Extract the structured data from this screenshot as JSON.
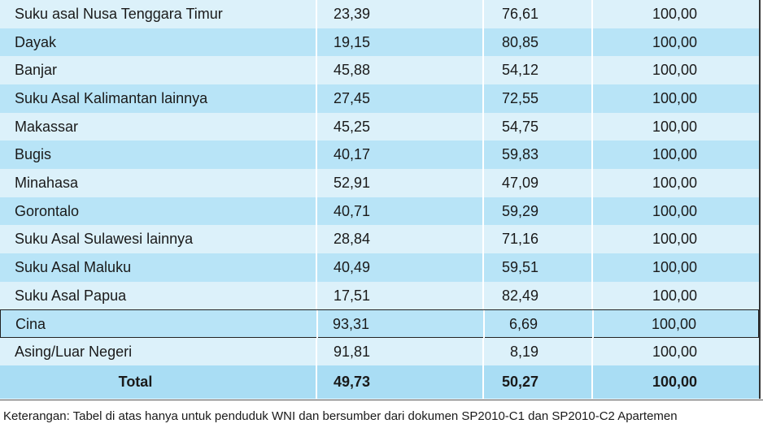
{
  "table": {
    "rows": [
      [
        "Suku asal Nusa Tenggara Timur",
        "23,39",
        "76,61",
        "100,00"
      ],
      [
        "Dayak",
        "19,15",
        "80,85",
        "100,00"
      ],
      [
        "Banjar",
        "45,88",
        "54,12",
        "100,00"
      ],
      [
        "Suku Asal Kalimantan lainnya",
        "27,45",
        "72,55",
        "100,00"
      ],
      [
        "Makassar",
        "45,25",
        "54,75",
        "100,00"
      ],
      [
        "Bugis",
        "40,17",
        "59,83",
        "100,00"
      ],
      [
        "Minahasa",
        "52,91",
        "47,09",
        "100,00"
      ],
      [
        "Gorontalo",
        "40,71",
        "59,29",
        "100,00"
      ],
      [
        "Suku Asal Sulawesi lainnya",
        "28,84",
        "71,16",
        "100,00"
      ],
      [
        "Suku Asal Maluku",
        "40,49",
        "59,51",
        "100,00"
      ],
      [
        "Suku Asal Papua",
        "17,51",
        "82,49",
        "100,00"
      ],
      [
        "Cina",
        "93,31",
        "6,69",
        "100,00"
      ],
      [
        "Asing/Luar Negeri",
        "91,81",
        "8,19",
        "100,00"
      ]
    ],
    "total": [
      "Total",
      "49,73",
      "50,27",
      "100,00"
    ]
  },
  "footnote": "Keterangan: Tabel di atas hanya untuk penduduk WNI dan bersumber dari dokumen SP2010-C1 dan SP2010-C2 Apartemen"
}
